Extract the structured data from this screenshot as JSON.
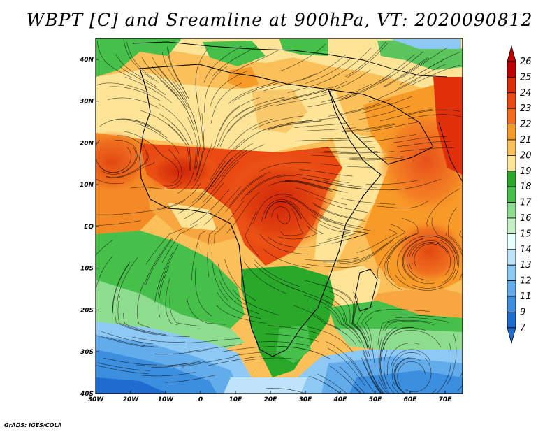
{
  "title": "WBPT [C] and Sreamline at 900hPa, VT: 2020090812",
  "footer": "GrADS: IGES/COLA",
  "map": {
    "lon_ticks": [
      {
        "v": -30,
        "t": "30W"
      },
      {
        "v": -20,
        "t": "20W"
      },
      {
        "v": -10,
        "t": "10W"
      },
      {
        "v": 0,
        "t": "0"
      },
      {
        "v": 10,
        "t": "10E"
      },
      {
        "v": 20,
        "t": "20E"
      },
      {
        "v": 30,
        "t": "30E"
      },
      {
        "v": 40,
        "t": "40E"
      },
      {
        "v": 50,
        "t": "50E"
      },
      {
        "v": 60,
        "t": "60E"
      },
      {
        "v": 70,
        "t": "70E"
      }
    ],
    "lat_ticks": [
      {
        "v": 40,
        "t": "40N"
      },
      {
        "v": 30,
        "t": "30N"
      },
      {
        "v": 20,
        "t": "20N"
      },
      {
        "v": 10,
        "t": "10N"
      },
      {
        "v": 0,
        "t": "EQ"
      },
      {
        "v": -10,
        "t": "10S"
      },
      {
        "v": -20,
        "t": "20S"
      },
      {
        "v": -30,
        "t": "30S"
      },
      {
        "v": -40,
        "t": "40S"
      }
    ],
    "lon_range": [
      -30,
      75
    ],
    "lat_range": [
      -40,
      45
    ]
  },
  "colorbar": {
    "levels": [
      "26",
      "25",
      "24",
      "23",
      "22",
      "21",
      "20",
      "19",
      "18",
      "17",
      "16",
      "15",
      "14",
      "13",
      "12",
      "11",
      "9",
      "7"
    ],
    "colors": [
      "#c00000",
      "#dc2c0a",
      "#ea4a12",
      "#f46e1c",
      "#f89a28",
      "#fbc05a",
      "#fde496",
      "#2aa82a",
      "#46c04a",
      "#8edc8e",
      "#c4f0c4",
      "#e6ffff",
      "#bfe3fb",
      "#8ec8f4",
      "#63aceb",
      "#3c8ede",
      "#1e6cd0"
    ]
  }
}
